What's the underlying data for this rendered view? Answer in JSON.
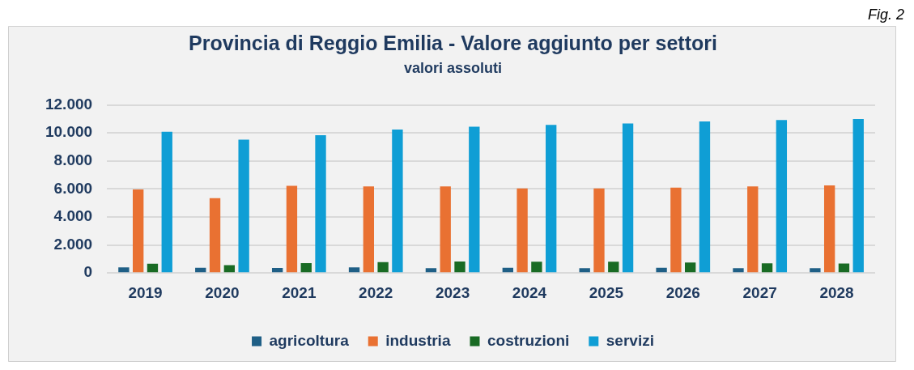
{
  "chart_data": {
    "type": "bar",
    "title": "Provincia di Reggio Emilia - Valore aggiunto per settori",
    "subtitle": "valori assoluti",
    "annotations": [
      "Fig. 2"
    ],
    "categories": [
      "2019",
      "2020",
      "2021",
      "2022",
      "2023",
      "2024",
      "2025",
      "2026",
      "2027",
      "2028"
    ],
    "series": [
      {
        "name": "agricoltura",
        "color": "#1f5f86",
        "values": [
          400,
          380,
          360,
          400,
          340,
          370,
          350,
          370,
          350,
          350
        ]
      },
      {
        "name": "industria",
        "color": "#e97132",
        "values": [
          5960,
          5340,
          6220,
          6180,
          6180,
          6040,
          6040,
          6100,
          6180,
          6260
        ]
      },
      {
        "name": "costruzioni",
        "color": "#196b24",
        "values": [
          660,
          560,
          700,
          780,
          820,
          810,
          810,
          750,
          690,
          670
        ]
      },
      {
        "name": "servizi",
        "color": "#0f9ed5",
        "values": [
          10080,
          9520,
          9840,
          10240,
          10440,
          10580,
          10680,
          10820,
          10920,
          11000
        ]
      }
    ],
    "ylim": [
      0,
      12000
    ],
    "yticks": [
      {
        "value": 0,
        "label": "0"
      },
      {
        "value": 2000,
        "label": "2.000"
      },
      {
        "value": 4000,
        "label": "4.000"
      },
      {
        "value": 6000,
        "label": "6.000"
      },
      {
        "value": 8000,
        "label": "8.000"
      },
      {
        "value": 10000,
        "label": "10.000"
      },
      {
        "value": 12000,
        "label": "12.000"
      }
    ],
    "grid": "y",
    "legend": "bottom"
  }
}
